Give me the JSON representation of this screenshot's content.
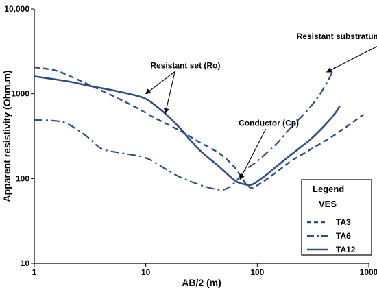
{
  "chart_data": {
    "type": "line",
    "xscale": "log",
    "yscale": "log",
    "xlim": [
      1,
      1000
    ],
    "ylim": [
      10,
      10000
    ],
    "xlabel": "AB/2 (m)",
    "ylabel": "Apparent resistivity (Ohm.m)",
    "x_ticks": [
      "1",
      "10",
      "100",
      "1000"
    ],
    "y_ticks": [
      "10",
      "100",
      "1000",
      "10,000"
    ],
    "grid": false,
    "series_color": "#2E4E86",
    "series": [
      {
        "name": "TA3",
        "style": "dashed",
        "points": [
          [
            1,
            2050
          ],
          [
            1.5,
            1900
          ],
          [
            2,
            1650
          ],
          [
            3,
            1300
          ],
          [
            5,
            950
          ],
          [
            8,
            700
          ],
          [
            12,
            520
          ],
          [
            20,
            370
          ],
          [
            30,
            270
          ],
          [
            45,
            200
          ],
          [
            60,
            145
          ],
          [
            70,
            110
          ],
          [
            80,
            85
          ],
          [
            90,
            78
          ],
          [
            110,
            90
          ],
          [
            150,
            120
          ],
          [
            200,
            160
          ],
          [
            300,
            220
          ],
          [
            500,
            330
          ],
          [
            900,
            570
          ]
        ]
      },
      {
        "name": "TA6",
        "style": "dash-dot",
        "points": [
          [
            1,
            490
          ],
          [
            1.5,
            480
          ],
          [
            2,
            440
          ],
          [
            3,
            310
          ],
          [
            4,
            225
          ],
          [
            6,
            200
          ],
          [
            10,
            175
          ],
          [
            15,
            130
          ],
          [
            20,
            105
          ],
          [
            30,
            85
          ],
          [
            40,
            76
          ],
          [
            50,
            74
          ],
          [
            60,
            85
          ],
          [
            70,
            105
          ],
          [
            80,
            130
          ],
          [
            100,
            160
          ],
          [
            150,
            260
          ],
          [
            200,
            400
          ],
          [
            300,
            700
          ],
          [
            400,
            1200
          ],
          [
            500,
            2100
          ]
        ]
      },
      {
        "name": "TA12",
        "style": "solid",
        "points": [
          [
            1,
            1600
          ],
          [
            2,
            1400
          ],
          [
            3,
            1250
          ],
          [
            5,
            1100
          ],
          [
            8,
            960
          ],
          [
            10,
            870
          ],
          [
            12,
            740
          ],
          [
            15,
            580
          ],
          [
            20,
            400
          ],
          [
            30,
            220
          ],
          [
            45,
            140
          ],
          [
            55,
            110
          ],
          [
            65,
            92
          ],
          [
            75,
            86
          ],
          [
            90,
            85
          ],
          [
            120,
            110
          ],
          [
            150,
            140
          ],
          [
            200,
            190
          ],
          [
            300,
            290
          ],
          [
            400,
            420
          ],
          [
            500,
            590
          ],
          [
            550,
            720
          ]
        ]
      }
    ],
    "annotations": [
      {
        "text": "Resistant set (Ro)",
        "x": 11,
        "y": 2000,
        "targets": [
          [
            10,
            1000
          ],
          [
            15,
            590
          ]
        ]
      },
      {
        "text": "Conductor (Cp)",
        "x": 68,
        "y": 420,
        "targets": [
          [
            70,
            98
          ]
        ]
      },
      {
        "text": "Resistant substratum (Rs)",
        "x": 225,
        "y": 4400,
        "targets": [
          [
            420,
            1800
          ]
        ]
      }
    ],
    "legend": {
      "title": "Legend",
      "subtitle": "VES",
      "position": "bottom-right",
      "entries": [
        "TA3",
        "TA6",
        "TA12"
      ]
    }
  }
}
